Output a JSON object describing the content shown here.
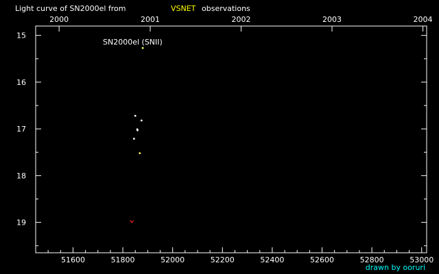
{
  "chart_data": {
    "type": "scatter",
    "title_prefix": "Light curve of SN2000el from",
    "title_source": "VSNET",
    "title_suffix": "observations",
    "annotation": "SN2000el (SNII)",
    "credit": "drawn by ooruri",
    "x_bottom": {
      "range": [
        51450,
        53020
      ],
      "ticks": [
        "51600",
        "51800",
        "52000",
        "52200",
        "52400",
        "52600",
        "52800",
        "53000"
      ]
    },
    "x_top": {
      "ticks": [
        "2000",
        "2001",
        "2002",
        "2003",
        "2004"
      ],
      "tick_mjd": [
        51544,
        51910,
        52275,
        52640,
        53005
      ]
    },
    "y": {
      "range": [
        14.8,
        19.65
      ],
      "inverted": true,
      "ticks": [
        "15",
        "16",
        "17",
        "18",
        "19"
      ]
    },
    "points": [
      {
        "x": 51880,
        "y": 15.27,
        "kind": "visual"
      },
      {
        "x": 51850,
        "y": 16.72,
        "kind": "ccd"
      },
      {
        "x": 51875,
        "y": 16.82,
        "kind": "ccd"
      },
      {
        "x": 51858,
        "y": 17.01,
        "kind": "ccd"
      },
      {
        "x": 51859,
        "y": 17.03,
        "kind": "ccd"
      },
      {
        "x": 51845,
        "y": 17.21,
        "kind": "ccd"
      },
      {
        "x": 51868,
        "y": 17.52,
        "kind": "visual"
      },
      {
        "x": 51836,
        "y": 18.98,
        "kind": "limit"
      }
    ],
    "colors": {
      "background": "#000000",
      "axis": "#ffffff",
      "text": "#ffffff",
      "source": "#ffff00",
      "credit": "#00ffff",
      "visual": "#ffff66",
      "ccd": "#ffffff",
      "limit": "#ff2020"
    }
  }
}
